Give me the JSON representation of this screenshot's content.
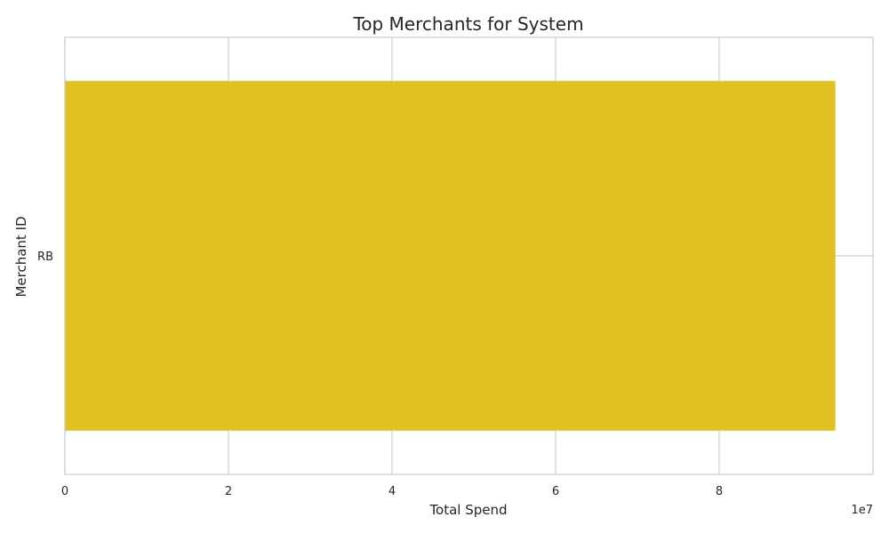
{
  "chart_data": {
    "type": "bar",
    "orientation": "horizontal",
    "title": "Top Merchants for System",
    "xlabel": "Total Spend",
    "ylabel": "Merchant ID",
    "categories": [
      "RB"
    ],
    "values": [
      94200000
    ],
    "xlim": [
      0,
      98800000
    ],
    "x_ticks": [
      0,
      20000000,
      40000000,
      60000000,
      80000000
    ],
    "x_tick_labels": [
      "0",
      "2",
      "4",
      "6",
      "8"
    ],
    "x_offset_label": "1e7",
    "grid": true,
    "legend": "none",
    "colors": {
      "bar": "#DFC220",
      "grid": "#CCCCCC",
      "spine": "#CCCCCC",
      "text": "#262626",
      "background": "#FFFFFF"
    }
  }
}
